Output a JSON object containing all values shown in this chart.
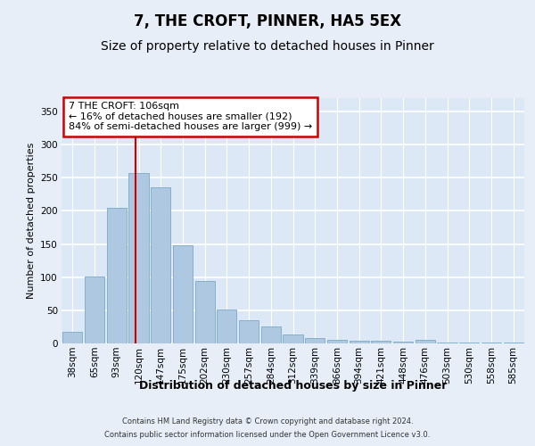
{
  "title": "7, THE CROFT, PINNER, HA5 5EX",
  "subtitle": "Size of property relative to detached houses in Pinner",
  "xlabel": "Distribution of detached houses by size in Pinner",
  "ylabel": "Number of detached properties",
  "footer_line1": "Contains HM Land Registry data © Crown copyright and database right 2024.",
  "footer_line2": "Contains public sector information licensed under the Open Government Licence v3.0.",
  "categories": [
    "38sqm",
    "65sqm",
    "93sqm",
    "120sqm",
    "147sqm",
    "175sqm",
    "202sqm",
    "230sqm",
    "257sqm",
    "284sqm",
    "312sqm",
    "339sqm",
    "366sqm",
    "394sqm",
    "421sqm",
    "448sqm",
    "476sqm",
    "503sqm",
    "530sqm",
    "558sqm",
    "585sqm"
  ],
  "values": [
    17,
    101,
    205,
    257,
    235,
    148,
    94,
    51,
    35,
    25,
    13,
    8,
    6,
    4,
    4,
    3,
    5,
    1,
    1,
    2,
    2
  ],
  "bar_color": "#adc8e0",
  "bar_edge_color": "#7aaac8",
  "annotation_text_line1": "7 THE CROFT: 106sqm",
  "annotation_text_line2": "← 16% of detached houses are smaller (192)",
  "annotation_text_line3": "84% of semi-detached houses are larger (999) →",
  "annotation_box_facecolor": "#ffffff",
  "annotation_box_edgecolor": "#cc0000",
  "vline_color": "#cc0000",
  "vline_x": 2.85,
  "ylim": [
    0,
    370
  ],
  "fig_facecolor": "#e8eef8",
  "plot_facecolor": "#dce8f5",
  "grid_color": "#ffffff",
  "title_fontsize": 12,
  "subtitle_fontsize": 10,
  "ylabel_fontsize": 8,
  "xlabel_fontsize": 9,
  "tick_fontsize": 7.5,
  "annotation_fontsize": 8,
  "footer_fontsize": 6
}
